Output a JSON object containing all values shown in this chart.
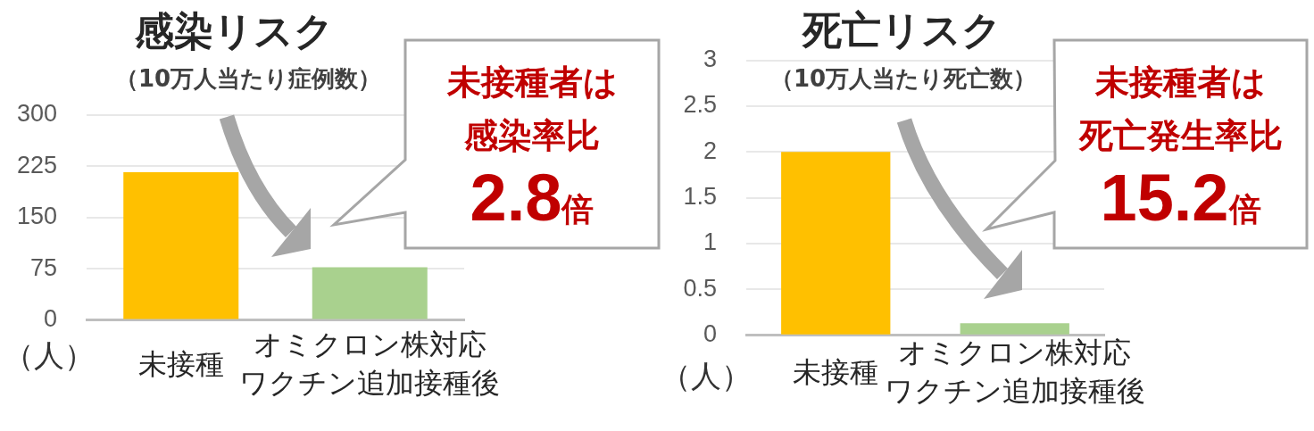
{
  "chart_data": [
    {
      "type": "bar",
      "title": "感染リスク",
      "subtitle": "（10万人当たり症例数）",
      "ylabel": "（人）",
      "categories": [
        "未接種",
        "オミクロン株対応ワクチン追加接種後"
      ],
      "values": [
        216,
        77
      ],
      "colors": [
        "#ffc000",
        "#a9d18e"
      ],
      "ylim": [
        0,
        300
      ],
      "yticks": [
        0,
        75,
        150,
        225,
        300
      ],
      "grid": "y",
      "annotations": [
        "未接種者は",
        "感染率比",
        "2.8倍"
      ]
    },
    {
      "type": "bar",
      "title": "死亡リスク",
      "subtitle": "（10万人当たり死亡数）",
      "ylabel": "（人）",
      "categories": [
        "未接種",
        "オミクロン株対応ワクチン追加接種後"
      ],
      "values": [
        2,
        0.13
      ],
      "colors": [
        "#ffc000",
        "#a9d18e"
      ],
      "ylim": [
        0,
        3
      ],
      "yticks": [
        0,
        0.5,
        1,
        1.5,
        2,
        2.5,
        3
      ],
      "grid": "y",
      "annotations": [
        "未接種者は",
        "死亡発生率比",
        "15.2倍"
      ]
    }
  ]
}
